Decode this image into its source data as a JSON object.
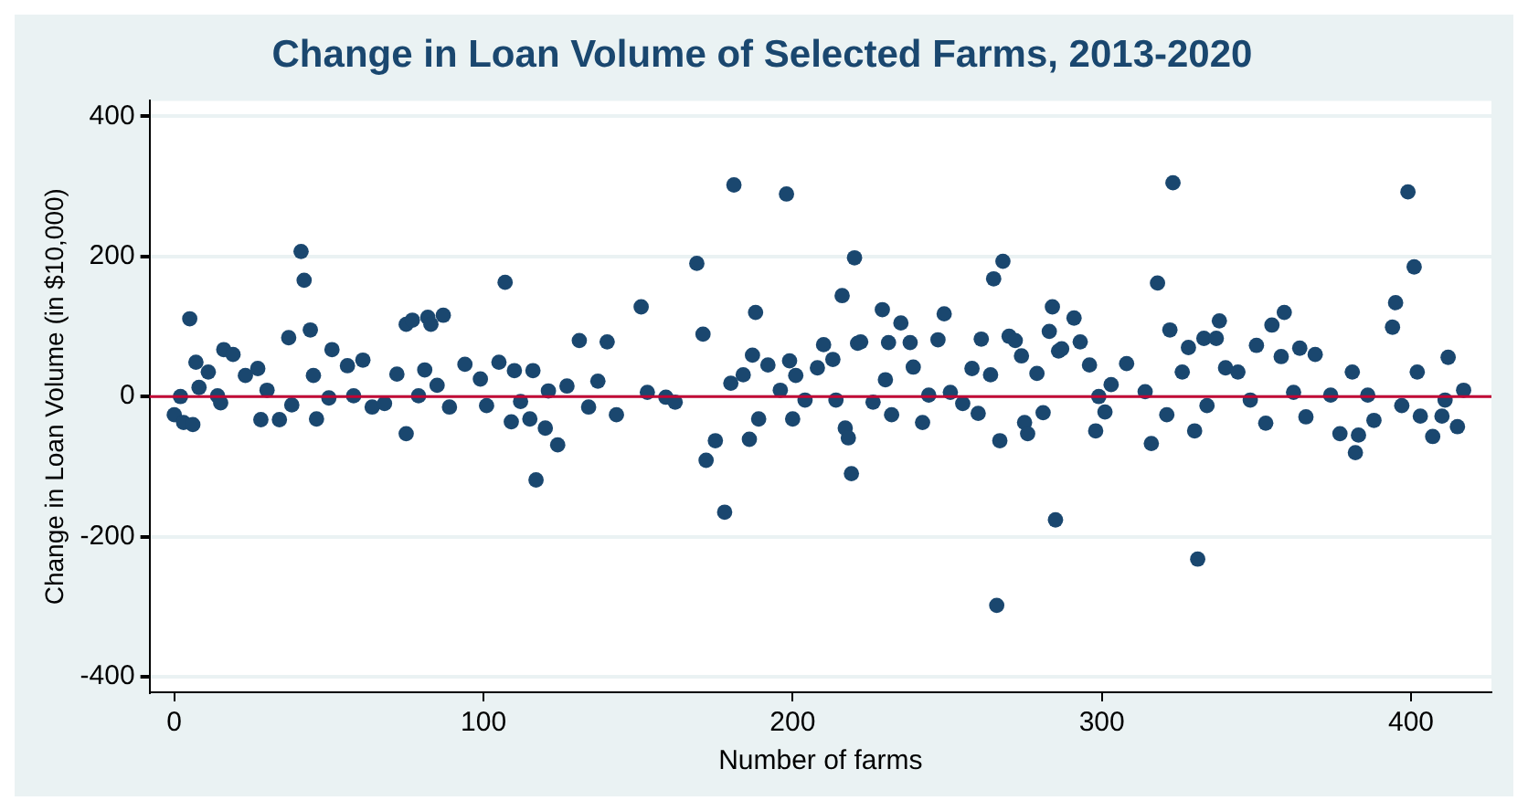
{
  "chart_data": {
    "type": "scatter",
    "title": "Change in Loan Volume of Selected Farms, 2013-2020",
    "xlabel": "Number of farms",
    "ylabel": "Change in Loan Volume (in $10,000)",
    "x": [
      0,
      2,
      3,
      5,
      6,
      7,
      8,
      11,
      14,
      15,
      16,
      19,
      23,
      27,
      28,
      30,
      34,
      37,
      38,
      41,
      42,
      44,
      45,
      46,
      50,
      51,
      56,
      58,
      61,
      64,
      68,
      72,
      75,
      75,
      77,
      79,
      81,
      82,
      83,
      85,
      87,
      89,
      94,
      99,
      101,
      105,
      107,
      109,
      110,
      112,
      115,
      116,
      117,
      120,
      121,
      124,
      127,
      131,
      134,
      137,
      140,
      143,
      151,
      153,
      159,
      162,
      169,
      171,
      172,
      175,
      178,
      180,
      181,
      184,
      186,
      187,
      188,
      189,
      192,
      196,
      198,
      199,
      200,
      201,
      204,
      208,
      210,
      213,
      214,
      216,
      217,
      218,
      219,
      220,
      221,
      222,
      226,
      229,
      230,
      231,
      232,
      235,
      238,
      239,
      242,
      244,
      247,
      249,
      251,
      255,
      258,
      260,
      261,
      264,
      265,
      266,
      267,
      268,
      270,
      272,
      274,
      275,
      276,
      279,
      281,
      283,
      284,
      285,
      286,
      287,
      291,
      293,
      296,
      298,
      299,
      301,
      303,
      308,
      314,
      316,
      318,
      321,
      322,
      323,
      326,
      328,
      330,
      331,
      333,
      334,
      337,
      338,
      340,
      344,
      348,
      350,
      353,
      355,
      358,
      359,
      362,
      364,
      366,
      369,
      374,
      377,
      381,
      382,
      383,
      386,
      388,
      394,
      395,
      397,
      399,
      401,
      402,
      403,
      407,
      410,
      411,
      412,
      415,
      417
    ],
    "values": [
      -26,
      0,
      -37,
      111,
      -40,
      49,
      13,
      35,
      1,
      -9,
      67,
      60,
      30,
      40,
      -33,
      9,
      -33,
      84,
      -12,
      207,
      166,
      95,
      30,
      -32,
      -2,
      67,
      44,
      1,
      52,
      -15,
      -10,
      32,
      103,
      -53,
      109,
      1,
      38,
      113,
      103,
      16,
      116,
      -15,
      46,
      25,
      -13,
      49,
      163,
      -36,
      37,
      -7,
      -32,
      37,
      -119,
      -45,
      8,
      -69,
      15,
      80,
      -15,
      22,
      78,
      -26,
      128,
      6,
      -1,
      -8,
      190,
      89,
      -91,
      -63,
      -165,
      19,
      302,
      31,
      -61,
      59,
      120,
      -32,
      45,
      9,
      289,
      51,
      -32,
      30,
      -5,
      41,
      74,
      53,
      -5,
      144,
      -45,
      -59,
      -110,
      198,
      76,
      78,
      -8,
      124,
      24,
      77,
      -26,
      105,
      77,
      42,
      -37,
      2,
      81,
      118,
      6,
      -10,
      40,
      -24,
      82,
      31,
      168,
      -298,
      -63,
      193,
      86,
      80,
      58,
      -37,
      -53,
      33,
      -23,
      93,
      128,
      -176,
      65,
      68,
      112,
      78,
      45,
      -49,
      0,
      -22,
      17,
      47,
      7,
      -67,
      162,
      -26,
      95,
      305,
      35,
      70,
      -49,
      -232,
      83,
      -13,
      83,
      108,
      41,
      35,
      -5,
      73,
      -38,
      102,
      57,
      120,
      6,
      69,
      -29,
      60,
      2,
      -53,
      35,
      -80,
      -55,
      2,
      -34,
      99,
      134,
      -13,
      292,
      185,
      35,
      -28,
      -57,
      -28,
      -5,
      56,
      -43,
      9
    ],
    "color": "#1a476f",
    "marker": "circle",
    "xlim": [
      -8,
      426
    ],
    "xticks": [
      0,
      100,
      200,
      300,
      400
    ],
    "ylim": [
      -422,
      422
    ],
    "yticks": [
      -400,
      -200,
      0,
      200,
      400
    ],
    "grid": "y",
    "ref_lines": [
      {
        "axis": "y",
        "value": 0,
        "color": "#c10534"
      }
    ]
  }
}
